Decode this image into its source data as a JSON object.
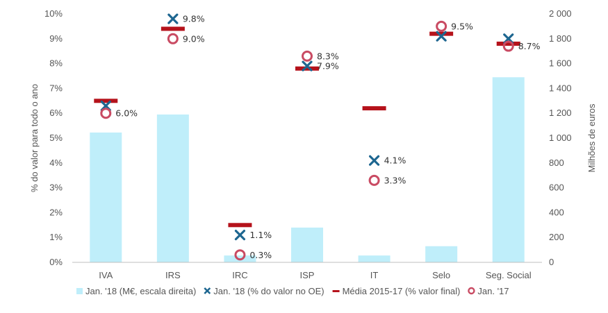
{
  "colors": {
    "bar": "#bfeefa",
    "cross": "#1d6690",
    "dash": "#b5121b",
    "ring": "#c94b63",
    "axis_text": "#555555",
    "axis_line": "#bfbfbf"
  },
  "chart_data": {
    "type": "bar",
    "title": "",
    "categories": [
      "IVA",
      "IRS",
      "IRC",
      "ISP",
      "IT",
      "Selo",
      "Seg. Social"
    ],
    "ylabel": "% do valor para todo o ano",
    "y2label": "Milhões de euros",
    "ylim": [
      0,
      10
    ],
    "y2lim": [
      0,
      2000
    ],
    "y_ticks": [
      "0%",
      "1%",
      "2%",
      "3%",
      "4%",
      "5%",
      "6%",
      "7%",
      "8%",
      "9%",
      "10%"
    ],
    "y2_ticks": [
      "0",
      "200",
      "400",
      "600",
      "800",
      "1 000",
      "1 200",
      "1 400",
      "1 600",
      "1 800",
      "2 000"
    ],
    "grid": false,
    "legend_position": "bottom",
    "series": [
      {
        "name": "Jan. '18 (M€, escala direita)",
        "type": "bar",
        "axis": "right",
        "values": [
          1045,
          1190,
          55,
          280,
          55,
          130,
          1490
        ]
      },
      {
        "name": "Jan. '18 (% do valor no OE)",
        "type": "marker-x",
        "axis": "left",
        "values": [
          6.3,
          9.8,
          1.1,
          7.9,
          4.1,
          9.1,
          9.0
        ],
        "labels": [
          null,
          "9.8%",
          "1.1%",
          "7.9%",
          "4.1%",
          null,
          null
        ]
      },
      {
        "name": "Média 2015-17 (% valor final)",
        "type": "marker-dash",
        "axis": "left",
        "values": [
          6.5,
          9.4,
          1.5,
          7.8,
          6.2,
          9.2,
          8.8
        ],
        "labels": [
          null,
          null,
          null,
          null,
          null,
          null,
          null
        ]
      },
      {
        "name": "Jan. '17",
        "type": "marker-circle",
        "axis": "left",
        "values": [
          6.0,
          9.0,
          0.3,
          8.3,
          3.3,
          9.5,
          8.7
        ],
        "labels": [
          "6.0%",
          "9.0%",
          "0.3%",
          "8.3%",
          "3.3%",
          "9.5%",
          "8.7%"
        ]
      }
    ]
  }
}
